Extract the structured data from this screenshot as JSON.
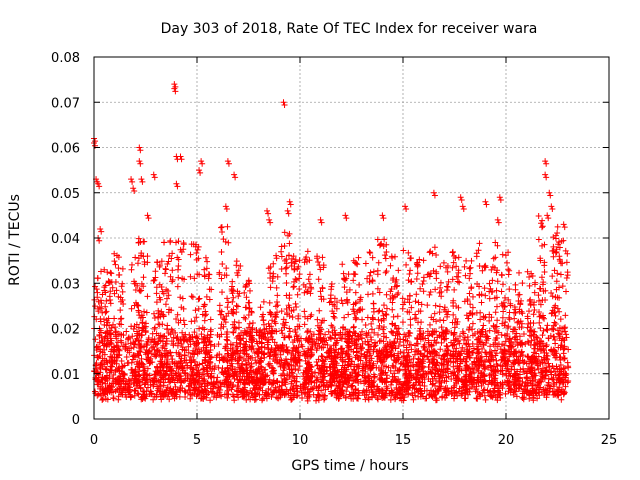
{
  "chart_data": {
    "type": "scatter",
    "title": "Day 303 of 2018, Rate Of TEC Index for receiver wara",
    "xlabel": "GPS time / hours",
    "ylabel": "ROTI / TECUs",
    "xlim": [
      0,
      25
    ],
    "ylim": [
      0,
      0.08
    ],
    "x_ticks": [
      0,
      5,
      10,
      15,
      20,
      25
    ],
    "x_tick_labels": [
      "0",
      "5",
      "10",
      "15",
      "20",
      "25"
    ],
    "y_ticks": [
      0,
      0.01,
      0.02,
      0.03,
      0.04,
      0.05,
      0.06,
      0.07,
      0.08
    ],
    "y_tick_labels": [
      "0",
      "0.01",
      "0.02",
      "0.03",
      "0.04",
      "0.05",
      "0.06",
      "0.07",
      "0.08"
    ],
    "grid": true,
    "marker": "plus",
    "color": "#ff0000",
    "data_extent_hours": [
      0,
      22.9
    ],
    "dense_band": [
      0.004,
      0.02
    ],
    "series": [
      {
        "name": "ROTI",
        "notable_points": [
          {
            "x": 0.0,
            "y": 0.062
          },
          {
            "x": 0.0,
            "y": 0.061
          },
          {
            "x": 0.1,
            "y": 0.053
          },
          {
            "x": 0.2,
            "y": 0.052
          },
          {
            "x": 0.3,
            "y": 0.042
          },
          {
            "x": 0.2,
            "y": 0.04
          },
          {
            "x": 1.8,
            "y": 0.053
          },
          {
            "x": 1.9,
            "y": 0.051
          },
          {
            "x": 2.2,
            "y": 0.06
          },
          {
            "x": 2.2,
            "y": 0.057
          },
          {
            "x": 2.3,
            "y": 0.053
          },
          {
            "x": 2.6,
            "y": 0.045
          },
          {
            "x": 2.9,
            "y": 0.054
          },
          {
            "x": 3.9,
            "y": 0.074
          },
          {
            "x": 3.9,
            "y": 0.073
          },
          {
            "x": 4.0,
            "y": 0.058
          },
          {
            "x": 4.0,
            "y": 0.052
          },
          {
            "x": 4.2,
            "y": 0.058
          },
          {
            "x": 5.2,
            "y": 0.057
          },
          {
            "x": 5.1,
            "y": 0.055
          },
          {
            "x": 6.5,
            "y": 0.057
          },
          {
            "x": 6.4,
            "y": 0.047
          },
          {
            "x": 6.8,
            "y": 0.054
          },
          {
            "x": 8.4,
            "y": 0.046
          },
          {
            "x": 8.5,
            "y": 0.044
          },
          {
            "x": 9.2,
            "y": 0.07
          },
          {
            "x": 9.5,
            "y": 0.048
          },
          {
            "x": 9.4,
            "y": 0.046
          },
          {
            "x": 11.0,
            "y": 0.044
          },
          {
            "x": 12.2,
            "y": 0.045
          },
          {
            "x": 14.0,
            "y": 0.045
          },
          {
            "x": 15.1,
            "y": 0.047
          },
          {
            "x": 16.5,
            "y": 0.05
          },
          {
            "x": 17.8,
            "y": 0.049
          },
          {
            "x": 17.9,
            "y": 0.047
          },
          {
            "x": 19.0,
            "y": 0.048
          },
          {
            "x": 19.7,
            "y": 0.049
          },
          {
            "x": 19.6,
            "y": 0.044
          },
          {
            "x": 21.9,
            "y": 0.057
          },
          {
            "x": 21.9,
            "y": 0.054
          },
          {
            "x": 22.1,
            "y": 0.05
          },
          {
            "x": 22.2,
            "y": 0.047
          },
          {
            "x": 22.0,
            "y": 0.045
          },
          {
            "x": 22.8,
            "y": 0.043
          }
        ],
        "activity_bursts": [
          {
            "x": 0.2,
            "peak": 0.033
          },
          {
            "x": 0.7,
            "peak": 0.033
          },
          {
            "x": 1.2,
            "peak": 0.037
          },
          {
            "x": 2.0,
            "peak": 0.04
          },
          {
            "x": 2.4,
            "peak": 0.04
          },
          {
            "x": 3.1,
            "peak": 0.035
          },
          {
            "x": 3.6,
            "peak": 0.04
          },
          {
            "x": 4.2,
            "peak": 0.04
          },
          {
            "x": 4.9,
            "peak": 0.039
          },
          {
            "x": 5.5,
            "peak": 0.036
          },
          {
            "x": 6.3,
            "peak": 0.044
          },
          {
            "x": 6.9,
            "peak": 0.035
          },
          {
            "x": 7.5,
            "peak": 0.031
          },
          {
            "x": 8.1,
            "peak": 0.026
          },
          {
            "x": 8.7,
            "peak": 0.037
          },
          {
            "x": 9.3,
            "peak": 0.042
          },
          {
            "x": 9.8,
            "peak": 0.036
          },
          {
            "x": 10.4,
            "peak": 0.038
          },
          {
            "x": 11.0,
            "peak": 0.036
          },
          {
            "x": 11.6,
            "peak": 0.03
          },
          {
            "x": 12.2,
            "peak": 0.035
          },
          {
            "x": 12.8,
            "peak": 0.036
          },
          {
            "x": 13.4,
            "peak": 0.038
          },
          {
            "x": 14.0,
            "peak": 0.04
          },
          {
            "x": 14.6,
            "peak": 0.036
          },
          {
            "x": 15.2,
            "peak": 0.04
          },
          {
            "x": 15.8,
            "peak": 0.036
          },
          {
            "x": 16.4,
            "peak": 0.038
          },
          {
            "x": 17.0,
            "peak": 0.035
          },
          {
            "x": 17.6,
            "peak": 0.038
          },
          {
            "x": 18.2,
            "peak": 0.037
          },
          {
            "x": 18.8,
            "peak": 0.039
          },
          {
            "x": 19.4,
            "peak": 0.04
          },
          {
            "x": 20.0,
            "peak": 0.037
          },
          {
            "x": 20.6,
            "peak": 0.033
          },
          {
            "x": 21.2,
            "peak": 0.033
          },
          {
            "x": 21.8,
            "peak": 0.045
          },
          {
            "x": 22.4,
            "peak": 0.043
          },
          {
            "x": 22.8,
            "peak": 0.04
          }
        ]
      }
    ]
  }
}
